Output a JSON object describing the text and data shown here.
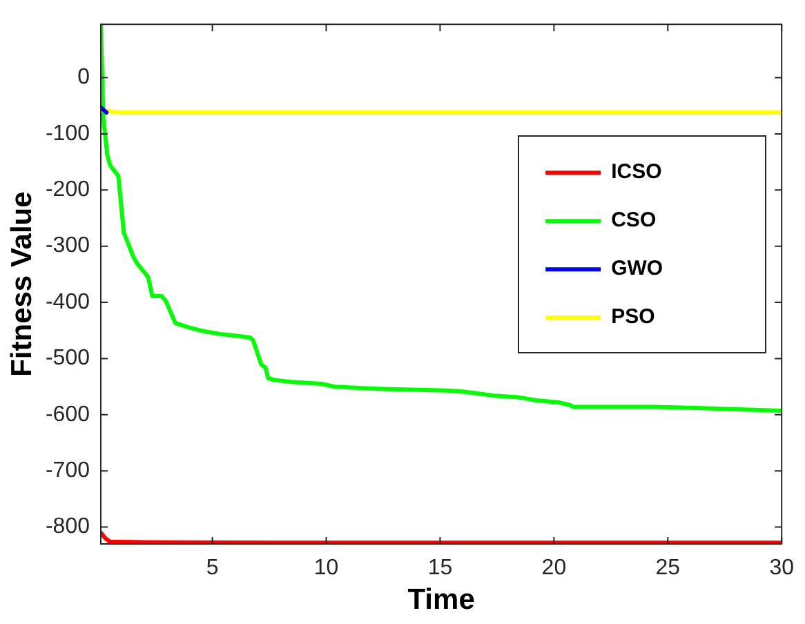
{
  "chart_data": {
    "type": "line",
    "xlabel": "Time",
    "ylabel": "Fitness Value",
    "xlim": [
      0.1,
      30
    ],
    "ylim": [
      -830,
      95
    ],
    "xticks": [
      5,
      10,
      15,
      20,
      25,
      30
    ],
    "yticks": [
      -800,
      -700,
      -600,
      -500,
      -400,
      -300,
      -200,
      -100,
      0
    ],
    "grid": false,
    "legend": "right",
    "marker": "none",
    "line_style": "solid",
    "series": [
      {
        "name": "ICSO",
        "color": "#ff0000",
        "x": [
          0.1,
          0.3,
          0.5,
          2,
          8,
          30
        ],
        "values": [
          -810,
          -820,
          -826,
          -827,
          -828,
          -828
        ]
      },
      {
        "name": "CSO",
        "color": "#00ff00",
        "x": [
          0.1,
          0.21,
          0.39,
          0.51,
          0.87,
          1.11,
          1.23,
          1.53,
          1.7,
          2.18,
          2.36,
          2.78,
          2.96,
          3.32,
          3.38,
          3.92,
          4.58,
          5.29,
          6.37,
          6.67,
          6.79,
          6.85,
          7.15,
          7.33,
          7.45,
          7.69,
          8.58,
          9.78,
          10.37,
          11.27,
          12.47,
          15.28,
          16.06,
          17.37,
          18.45,
          19.17,
          20.2,
          20.72,
          20.84,
          24.43,
          26.23,
          27.84,
          30
        ],
        "values": [
          95,
          -72,
          -139,
          -156,
          -175,
          -276,
          -288,
          -319,
          -331,
          -355,
          -389,
          -389,
          -398,
          -432,
          -437,
          -444,
          -451,
          -456,
          -461,
          -463,
          -468,
          -475,
          -511,
          -516,
          -535,
          -538,
          -542,
          -545,
          -550,
          -552,
          -554,
          -557,
          -559,
          -566,
          -569,
          -574,
          -578,
          -583,
          -586,
          -586,
          -588,
          -590,
          -593
        ]
      },
      {
        "name": "GWO",
        "color": "#0000ff",
        "x": [
          0.1,
          0.35
        ],
        "values": [
          -53,
          -62
        ]
      },
      {
        "name": "PSO",
        "color": "#ffff00",
        "x": [
          0.1,
          1,
          30
        ],
        "values": [
          -58,
          -62,
          -62
        ]
      }
    ]
  }
}
